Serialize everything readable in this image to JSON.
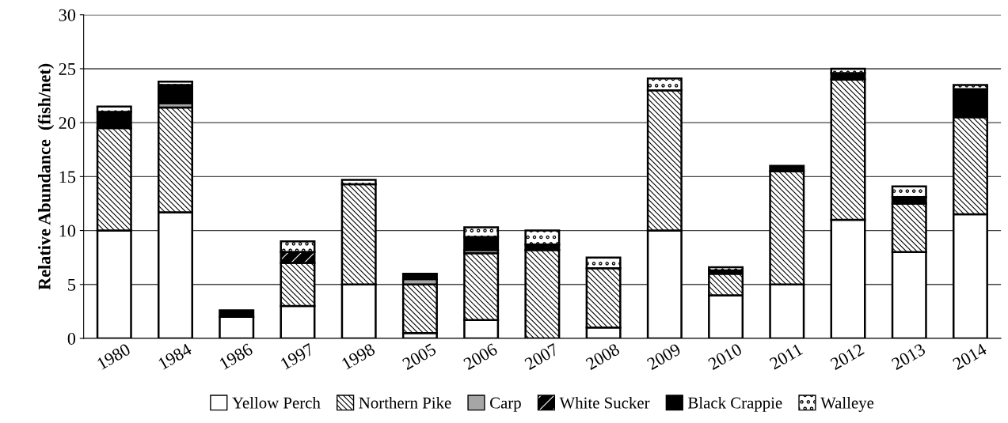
{
  "chart_data": {
    "type": "bar",
    "stacked": true,
    "ylabel": "Relative Abundance  (fish/net)",
    "categories": [
      "1980",
      "1984",
      "1986",
      "1997",
      "1998",
      "2005",
      "2006",
      "2007",
      "2008",
      "2009",
      "2010",
      "2011",
      "2012",
      "2013",
      "2014"
    ],
    "series": [
      {
        "name": "Yellow Perch",
        "color": "#ffffff",
        "values": [
          10,
          11.7,
          2.0,
          3,
          5,
          0.5,
          1.7,
          0,
          1.0,
          10,
          4,
          5,
          11,
          8,
          11.5
        ]
      },
      {
        "name": "Northern Pike",
        "color": "#000000",
        "values": [
          9.5,
          9.7,
          0,
          4,
          9.3,
          4.5,
          6.2,
          8.2,
          5.5,
          13,
          2,
          10.5,
          13,
          4.5,
          9
        ]
      },
      {
        "name": "Carp",
        "color": "#a6a6a6",
        "values": [
          0,
          0.4,
          0,
          0,
          0,
          0.5,
          0.3,
          0,
          0,
          0,
          0,
          0,
          0,
          0,
          0
        ]
      },
      {
        "name": "White Sucker",
        "color": "#000000",
        "values": [
          0,
          0,
          0,
          1,
          0,
          0,
          0,
          0,
          0,
          0,
          0,
          0,
          0,
          0,
          0
        ]
      },
      {
        "name": "Black Crappie",
        "color": "#000000",
        "values": [
          1.5,
          1.7,
          0.6,
          0,
          0,
          0.5,
          1.2,
          0.5,
          0,
          0,
          0.3,
          0.5,
          0.6,
          0.6,
          2.6
        ]
      },
      {
        "name": "Walleye",
        "color": "#000000",
        "values": [
          0.5,
          0.3,
          0,
          1,
          0.4,
          0,
          0.9,
          1.3,
          1.0,
          1.1,
          0.3,
          0,
          0.4,
          1.0,
          0.4
        ]
      }
    ],
    "ylim": [
      0,
      30
    ],
    "yticks": [
      0,
      5,
      10,
      15,
      20,
      25,
      30
    ],
    "grid": "y",
    "legend": "bottom"
  }
}
